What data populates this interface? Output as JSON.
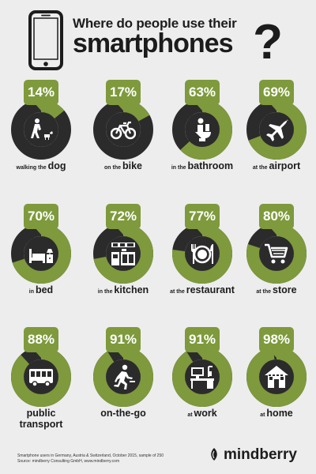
{
  "header": {
    "title_line1": "Where do people use their",
    "title_line2": "smartphones",
    "question_mark": "?"
  },
  "colors": {
    "green": "#7e9a3c",
    "dark": "#2b2b2b",
    "background": "#ededed"
  },
  "stats": [
    {
      "percent": "14%",
      "value": 14,
      "prefix": "walking the",
      "emphasis": "dog",
      "icon": "person-with-dog-icon"
    },
    {
      "percent": "17%",
      "value": 17,
      "prefix": "on the",
      "emphasis": "bike",
      "icon": "bicycle-icon"
    },
    {
      "percent": "63%",
      "value": 63,
      "prefix": "in the",
      "emphasis": "bathroom",
      "icon": "toilet-icon"
    },
    {
      "percent": "69%",
      "value": 69,
      "prefix": "at the",
      "emphasis": "airport",
      "icon": "airplane-icon"
    },
    {
      "percent": "70%",
      "value": 70,
      "prefix": "in",
      "emphasis": "bed",
      "icon": "bed-icon"
    },
    {
      "percent": "72%",
      "value": 72,
      "prefix": "in the",
      "emphasis": "kitchen",
      "icon": "kitchen-icon"
    },
    {
      "percent": "77%",
      "value": 77,
      "prefix": "at the",
      "emphasis": "restaurant",
      "icon": "plate-cutlery-icon"
    },
    {
      "percent": "80%",
      "value": 80,
      "prefix": "at the",
      "emphasis": "store",
      "icon": "shopping-cart-icon"
    },
    {
      "percent": "88%",
      "value": 88,
      "prefix": "",
      "emphasis": "public transport",
      "icon": "bus-icon"
    },
    {
      "percent": "91%",
      "value": 91,
      "prefix": "",
      "emphasis": "on-the-go",
      "icon": "running-person-icon"
    },
    {
      "percent": "91%",
      "value": 91,
      "prefix": "at",
      "emphasis": "work",
      "icon": "desk-computer-icon"
    },
    {
      "percent": "98%",
      "value": 98,
      "prefix": "at",
      "emphasis": "home",
      "icon": "house-icon"
    }
  ],
  "footer": {
    "note_line1": "Smartphone users in Germany, Austria & Switzerland, October 2015, sample of 250",
    "note_line2": "Source: mindberry Consulting GmbH, www.mindberry.com",
    "brand": "mindberry"
  }
}
